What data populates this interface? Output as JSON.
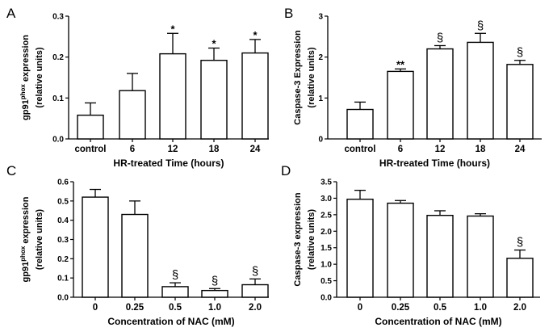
{
  "chart_data": [
    {
      "panel": "A",
      "type": "bar",
      "categories": [
        "control",
        "6",
        "12",
        "18",
        "24"
      ],
      "values": [
        0.058,
        0.118,
        0.208,
        0.192,
        0.21
      ],
      "errors": [
        0.03,
        0.042,
        0.05,
        0.03,
        0.033
      ],
      "annotations": [
        "",
        "",
        "*",
        "*",
        "*"
      ],
      "xlabel": "HR-treated Time (hours)",
      "ylabel_pre": "gp91",
      "ylabel_sup": "phox",
      "ylabel_post": " expression",
      "ylabel2": "(relative units)",
      "yticks": [
        "0.0",
        "0.1",
        "0.2",
        "0.3"
      ],
      "ylim": [
        0,
        0.3
      ],
      "grid": false
    },
    {
      "panel": "B",
      "type": "bar",
      "categories": [
        "control",
        "6",
        "12",
        "18",
        "24"
      ],
      "values": [
        0.72,
        1.65,
        2.2,
        2.36,
        1.82
      ],
      "errors": [
        0.18,
        0.06,
        0.08,
        0.22,
        0.1
      ],
      "annotations": [
        "",
        "**",
        "§",
        "§",
        "§"
      ],
      "xlabel": "HR-treated Time (hours)",
      "ylabel": "Caspase-3 Expression",
      "ylabel2": "(relative units)",
      "yticks": [
        "0",
        "1",
        "2",
        "3"
      ],
      "ylim": [
        0,
        3
      ],
      "grid": false
    },
    {
      "panel": "C",
      "type": "bar",
      "categories": [
        "0",
        "0.25",
        "0.5",
        "1.0",
        "2.0"
      ],
      "values": [
        0.52,
        0.43,
        0.055,
        0.035,
        0.065
      ],
      "errors": [
        0.04,
        0.07,
        0.02,
        0.01,
        0.03
      ],
      "annotations": [
        "",
        "",
        "§",
        "§",
        "§"
      ],
      "xlabel": "Concentration of NAC (mM)",
      "ylabel_pre": "gp91",
      "ylabel_sup": "phox",
      "ylabel_post": " expression",
      "ylabel2": "(relative units)",
      "yticks": [
        "0.0",
        "0.1",
        "0.2",
        "0.3",
        "0.4",
        "0.5",
        "0.6"
      ],
      "ylim": [
        0,
        0.6
      ],
      "grid": false
    },
    {
      "panel": "D",
      "type": "bar",
      "categories": [
        "0",
        "0.25",
        "0.5",
        "1.0",
        "2.0"
      ],
      "values": [
        2.97,
        2.85,
        2.48,
        2.46,
        1.18
      ],
      "errors": [
        0.27,
        0.08,
        0.14,
        0.07,
        0.25
      ],
      "annotations": [
        "",
        "",
        "",
        "",
        "§"
      ],
      "xlabel": "Concentration of NAC (mM)",
      "ylabel": "Caspase-3 expression",
      "ylabel2": "(relative units)",
      "yticks": [
        "0.0",
        "0.5",
        "1.0",
        "1.5",
        "2.0",
        "2.5",
        "3.0",
        "3.5"
      ],
      "ylim": [
        0,
        3.5
      ],
      "grid": false
    }
  ]
}
